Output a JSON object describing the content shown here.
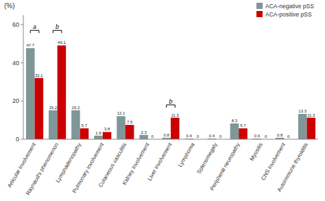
{
  "chart_data": {
    "type": "bar",
    "y_label": "(%)",
    "categories": [
      "Articular involvement",
      "Raynaud's phenomenon",
      "Lymphadenopathy",
      "Pulmonary involvement",
      "Cutaneous vasculitis",
      "Kidney involvement",
      "Liver involvement",
      "Lymphoma",
      "Splenomegaly",
      "Peripheral neuropathy",
      "Myositis",
      "CNS involvement",
      "Autoimmune thyroiditis"
    ],
    "series": [
      {
        "name": "ACA-negative pSS",
        "color": "#7f9799",
        "values": [
          47.7,
          15.2,
          15.2,
          1.9,
          12.1,
          2.3,
          0.8,
          0.4,
          0.4,
          8.3,
          0.4,
          0.8,
          13.3
        ]
      },
      {
        "name": "ACA-positive pSS",
        "color": "#cc0000",
        "values": [
          32.1,
          49.1,
          5.7,
          3.8,
          7.5,
          0,
          11.3,
          0,
          0,
          5.7,
          0,
          0,
          11.3
        ]
      }
    ],
    "annotations": [
      {
        "text": "a",
        "category": "Articular involvement",
        "y": 57
      },
      {
        "text": "b",
        "category": "Raynaud's phenomenon",
        "y": 57
      },
      {
        "text": "b",
        "category": "Liver involvement",
        "y": 18
      }
    ],
    "ylim": [
      0,
      65
    ],
    "yticks": [
      0,
      20,
      40,
      60
    ],
    "grid": false,
    "legend": "upper right",
    "data_labels": true
  }
}
